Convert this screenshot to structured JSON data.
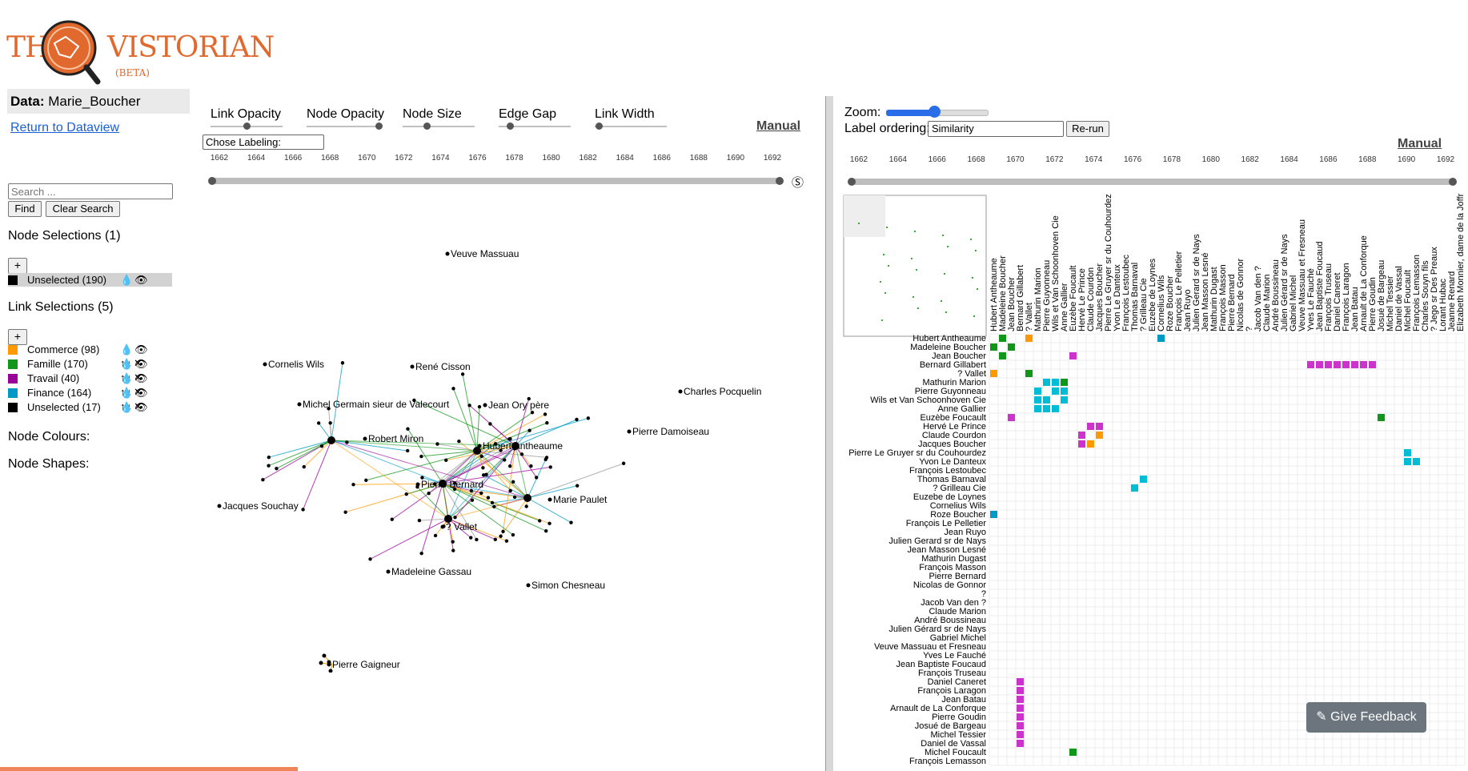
{
  "app": {
    "logo_text_left": "THE",
    "logo_text_right": "VISTORIAN",
    "logo_beta": "(BETA)"
  },
  "left_panel": {
    "data_label": "Data:",
    "data_value": "Marie_Boucher",
    "return_link": "Return to Dataview",
    "search_placeholder": "Search ...",
    "find_label": "Find",
    "clear_label": "Clear Search",
    "node_selections_title": "Node Selections (1)",
    "node_selections": [
      {
        "label": "Unselected (190)",
        "color": "#000000",
        "icons": "💧👁"
      }
    ],
    "link_selections_title": "Link Selections (5)",
    "link_selections": [
      {
        "label": "Commerce (98)",
        "color": "#ff9900",
        "icons": "💧👁↑↓✕"
      },
      {
        "label": "Famille (170)",
        "color": "#109618",
        "icons": "💧👁↑↓✕"
      },
      {
        "label": "Travail (40)",
        "color": "#990099",
        "icons": "💧👁↑↓✕"
      },
      {
        "label": "Finance (164)",
        "color": "#0099c6",
        "icons": "💧👁↑↓✕"
      },
      {
        "label": "Unselected (17)",
        "color": "#000000",
        "icons": "💧👁"
      }
    ],
    "plus_label": "+",
    "node_colours_title": "Node Colours:",
    "node_shapes_title": "Node Shapes:"
  },
  "nodelink": {
    "controls": [
      "Link Opacity",
      "Node Opacity",
      "Node Size",
      "Edge Gap",
      "Link Width"
    ],
    "control_levels": [
      0.5,
      1.0,
      0.33,
      0.15,
      0.05
    ],
    "manual_label": "Manual",
    "labeling_select": "Chose Labeling:",
    "timeline_years": [
      "1662",
      "1664",
      "1666",
      "1668",
      "1670",
      "1672",
      "1674",
      "1676",
      "1678",
      "1680",
      "1682",
      "1684",
      "1686",
      "1688",
      "1690",
      "1692"
    ],
    "timeline_icon": "Ⓢ",
    "labels": [
      "Veuve Massuau",
      "Cornelis Wils",
      "René Cisson",
      "Charles Pocquelin",
      "Michel Germain sieur de Valecourt",
      "Jean Ory père",
      "Robert Miron",
      "Hubert Antheaume",
      "Pierre Damoiseau",
      "Pierre Bernard",
      "Marie Paulet",
      "Jacques Souchay",
      "? Vallet",
      "Madeleine Gassau",
      "Simon Chesneau",
      "Pierre Gaigneur"
    ]
  },
  "matrix": {
    "zoom_label": "Zoom:",
    "zoom_level": 0.45,
    "order_label": "Label ordering:",
    "order_value": "Similarity",
    "rerun_label": "Re-run",
    "manual_label": "Manual",
    "timeline_years": [
      "1662",
      "1664",
      "1666",
      "1668",
      "1670",
      "1672",
      "1674",
      "1676",
      "1678",
      "1680",
      "1682",
      "1684",
      "1686",
      "1688",
      "1690",
      "1692"
    ],
    "row_labels": [
      "Hubert Antheaume",
      "Madeleine Boucher",
      "Jean Boucher",
      "Bernard Gillabert",
      "? Vallet",
      "Mathurin Marion",
      "Pierre Guyonneau",
      "Wils et Van Schoonhoven Cie",
      "Anne Gallier",
      "Euzèbe Foucault",
      "Hervé Le Prince",
      "Claude Courdon",
      "Jacques Boucher",
      "Pierre Le Gruyer sr du Couhourdez",
      "Yvon Le Danteux",
      "François Lestoubec",
      "Thomas Barnaval",
      "? Grilleau Cie",
      "Euzebe de Loynes",
      "Cornelius Wils",
      "Roze Boucher",
      "François Le Pelletier",
      "Jean Ruyo",
      "Julien Gerard sr de Nays",
      "Jean Masson Lesné",
      "Mathurin Dugast",
      "François Masson",
      "Pierre Bernard",
      "Nicolas de Gonnor",
      "?",
      "Jacob Van den ?",
      "Claude Marion",
      "André Boussineau",
      "Julien Gérard sr de Nays",
      "Gabriel Michel",
      "Veuve Massuau et Fresneau",
      "Yves Le Fauché",
      "Jean Baptiste Foucaud",
      "François Truseau",
      "Daniel Caneret",
      "François Laragon",
      "Jean Batau",
      "Arnault de La Conforque",
      "Pierre Goudin",
      "Josué de Bargeau",
      "Michel Tessier",
      "Daniel de Vassal",
      "Michel Foucault",
      "François Lemasson"
    ],
    "col_labels": [
      "Hubert Antheaume",
      "Madeleine Boucher",
      "Jean Boucher",
      "Bernard Gillabert",
      "? Vallet",
      "Mathurin Marion",
      "Pierre Guyonneau",
      "Wils et Van Schoonhoven Cie",
      "Anne Gallier",
      "Euzèbe Foucault",
      "Hervé Le Prince",
      "Claude Courdon",
      "Jacques Boucher",
      "Pierre Le Gruyer sr du Couhourdez",
      "Yvon Le Danteux",
      "François Lestoubec",
      "Thomas Barnaval",
      "? Grilleau Cie",
      "Euzebe de Loynes",
      "Cornelius Wils",
      "Roze Boucher",
      "François Le Pelletier",
      "Jean Ruyo",
      "Julien Gerard sr de Nays",
      "Jean Masson Lesné",
      "Mathurin Dugast",
      "François Masson",
      "Pierre Bernard",
      "Nicolas de Gonnor",
      "?",
      "Jacob Van den ?",
      "Claude Marion",
      "André Boussineau",
      "Julien Gérard sr de Nays",
      "Gabriel Michel",
      "Veuve Massuau et Fresneau",
      "Yves Le Fauché",
      "Jean Baptiste Foucaud",
      "François Truseau",
      "Daniel Caneret",
      "François Laragon",
      "Jean Batau",
      "Arnault de La Conforque",
      "Pierre Goudin",
      "Josué de Bargeau",
      "Michel Tessier",
      "Daniel de Vassal",
      "Michel Foucault",
      "François Lemasson",
      "Charles Souyn fils",
      "? Jego sr Des Preaux",
      "Lorant Hubac",
      "Jeanne Renard",
      "Elizabeth Monnier, dame de la Joffr"
    ],
    "cells": [
      {
        "r": 0,
        "c": 1,
        "color": "#109618"
      },
      {
        "r": 0,
        "c": 4,
        "color": "#ff9900"
      },
      {
        "r": 0,
        "c": 19,
        "color": "#0099c6"
      },
      {
        "r": 1,
        "c": 0,
        "color": "#109618"
      },
      {
        "r": 1,
        "c": 2,
        "color": "#109618"
      },
      {
        "r": 2,
        "c": 1,
        "color": "#109618"
      },
      {
        "r": 2,
        "c": 9,
        "color": "#cc33cc"
      },
      {
        "r": 3,
        "c": 36,
        "color": "#cc33cc"
      },
      {
        "r": 3,
        "c": 37,
        "color": "#cc33cc"
      },
      {
        "r": 3,
        "c": 38,
        "color": "#cc33cc"
      },
      {
        "r": 3,
        "c": 39,
        "color": "#cc33cc"
      },
      {
        "r": 3,
        "c": 40,
        "color": "#cc33cc"
      },
      {
        "r": 3,
        "c": 41,
        "color": "#cc33cc"
      },
      {
        "r": 3,
        "c": 42,
        "color": "#cc33cc"
      },
      {
        "r": 3,
        "c": 43,
        "color": "#cc33cc"
      },
      {
        "r": 4,
        "c": 0,
        "color": "#ff9900"
      },
      {
        "r": 4,
        "c": 4,
        "color": "#109618"
      },
      {
        "r": 5,
        "c": 6,
        "color": "#00bcd4"
      },
      {
        "r": 5,
        "c": 7,
        "color": "#00bcd4"
      },
      {
        "r": 5,
        "c": 8,
        "color": "#109618"
      },
      {
        "r": 6,
        "c": 5,
        "color": "#00bcd4"
      },
      {
        "r": 6,
        "c": 7,
        "color": "#00bcd4"
      },
      {
        "r": 6,
        "c": 8,
        "color": "#00bcd4"
      },
      {
        "r": 7,
        "c": 5,
        "color": "#00bcd4"
      },
      {
        "r": 7,
        "c": 6,
        "color": "#00bcd4"
      },
      {
        "r": 7,
        "c": 8,
        "color": "#00bcd4"
      },
      {
        "r": 8,
        "c": 5,
        "color": "#00bcd4"
      },
      {
        "r": 8,
        "c": 6,
        "color": "#00bcd4"
      },
      {
        "r": 8,
        "c": 7,
        "color": "#00bcd4"
      },
      {
        "r": 9,
        "c": 2,
        "color": "#cc33cc"
      },
      {
        "r": 9,
        "c": 44,
        "color": "#109618"
      },
      {
        "r": 10,
        "c": 11,
        "color": "#cc33cc"
      },
      {
        "r": 10,
        "c": 12,
        "color": "#cc33cc"
      },
      {
        "r": 11,
        "c": 10,
        "color": "#cc33cc"
      },
      {
        "r": 11,
        "c": 12,
        "color": "#ff9900"
      },
      {
        "r": 12,
        "c": 10,
        "color": "#cc33cc"
      },
      {
        "r": 12,
        "c": 11,
        "color": "#ff9900"
      },
      {
        "r": 13,
        "c": 47,
        "color": "#00bcd4"
      },
      {
        "r": 14,
        "c": 47,
        "color": "#00bcd4"
      },
      {
        "r": 14,
        "c": 48,
        "color": "#00bcd4"
      },
      {
        "r": 16,
        "c": 17,
        "color": "#00bcd4"
      },
      {
        "r": 17,
        "c": 16,
        "color": "#00bcd4"
      },
      {
        "r": 20,
        "c": 0,
        "color": "#0099c6"
      },
      {
        "r": 39,
        "c": 3,
        "color": "#cc33cc"
      },
      {
        "r": 40,
        "c": 3,
        "color": "#cc33cc"
      },
      {
        "r": 41,
        "c": 3,
        "color": "#cc33cc"
      },
      {
        "r": 42,
        "c": 3,
        "color": "#cc33cc"
      },
      {
        "r": 43,
        "c": 3,
        "color": "#cc33cc"
      },
      {
        "r": 44,
        "c": 3,
        "color": "#cc33cc"
      },
      {
        "r": 45,
        "c": 3,
        "color": "#cc33cc"
      },
      {
        "r": 46,
        "c": 3,
        "color": "#cc33cc"
      },
      {
        "r": 47,
        "c": 9,
        "color": "#109618"
      }
    ]
  },
  "feedback_label": "✎ Give Feedback"
}
